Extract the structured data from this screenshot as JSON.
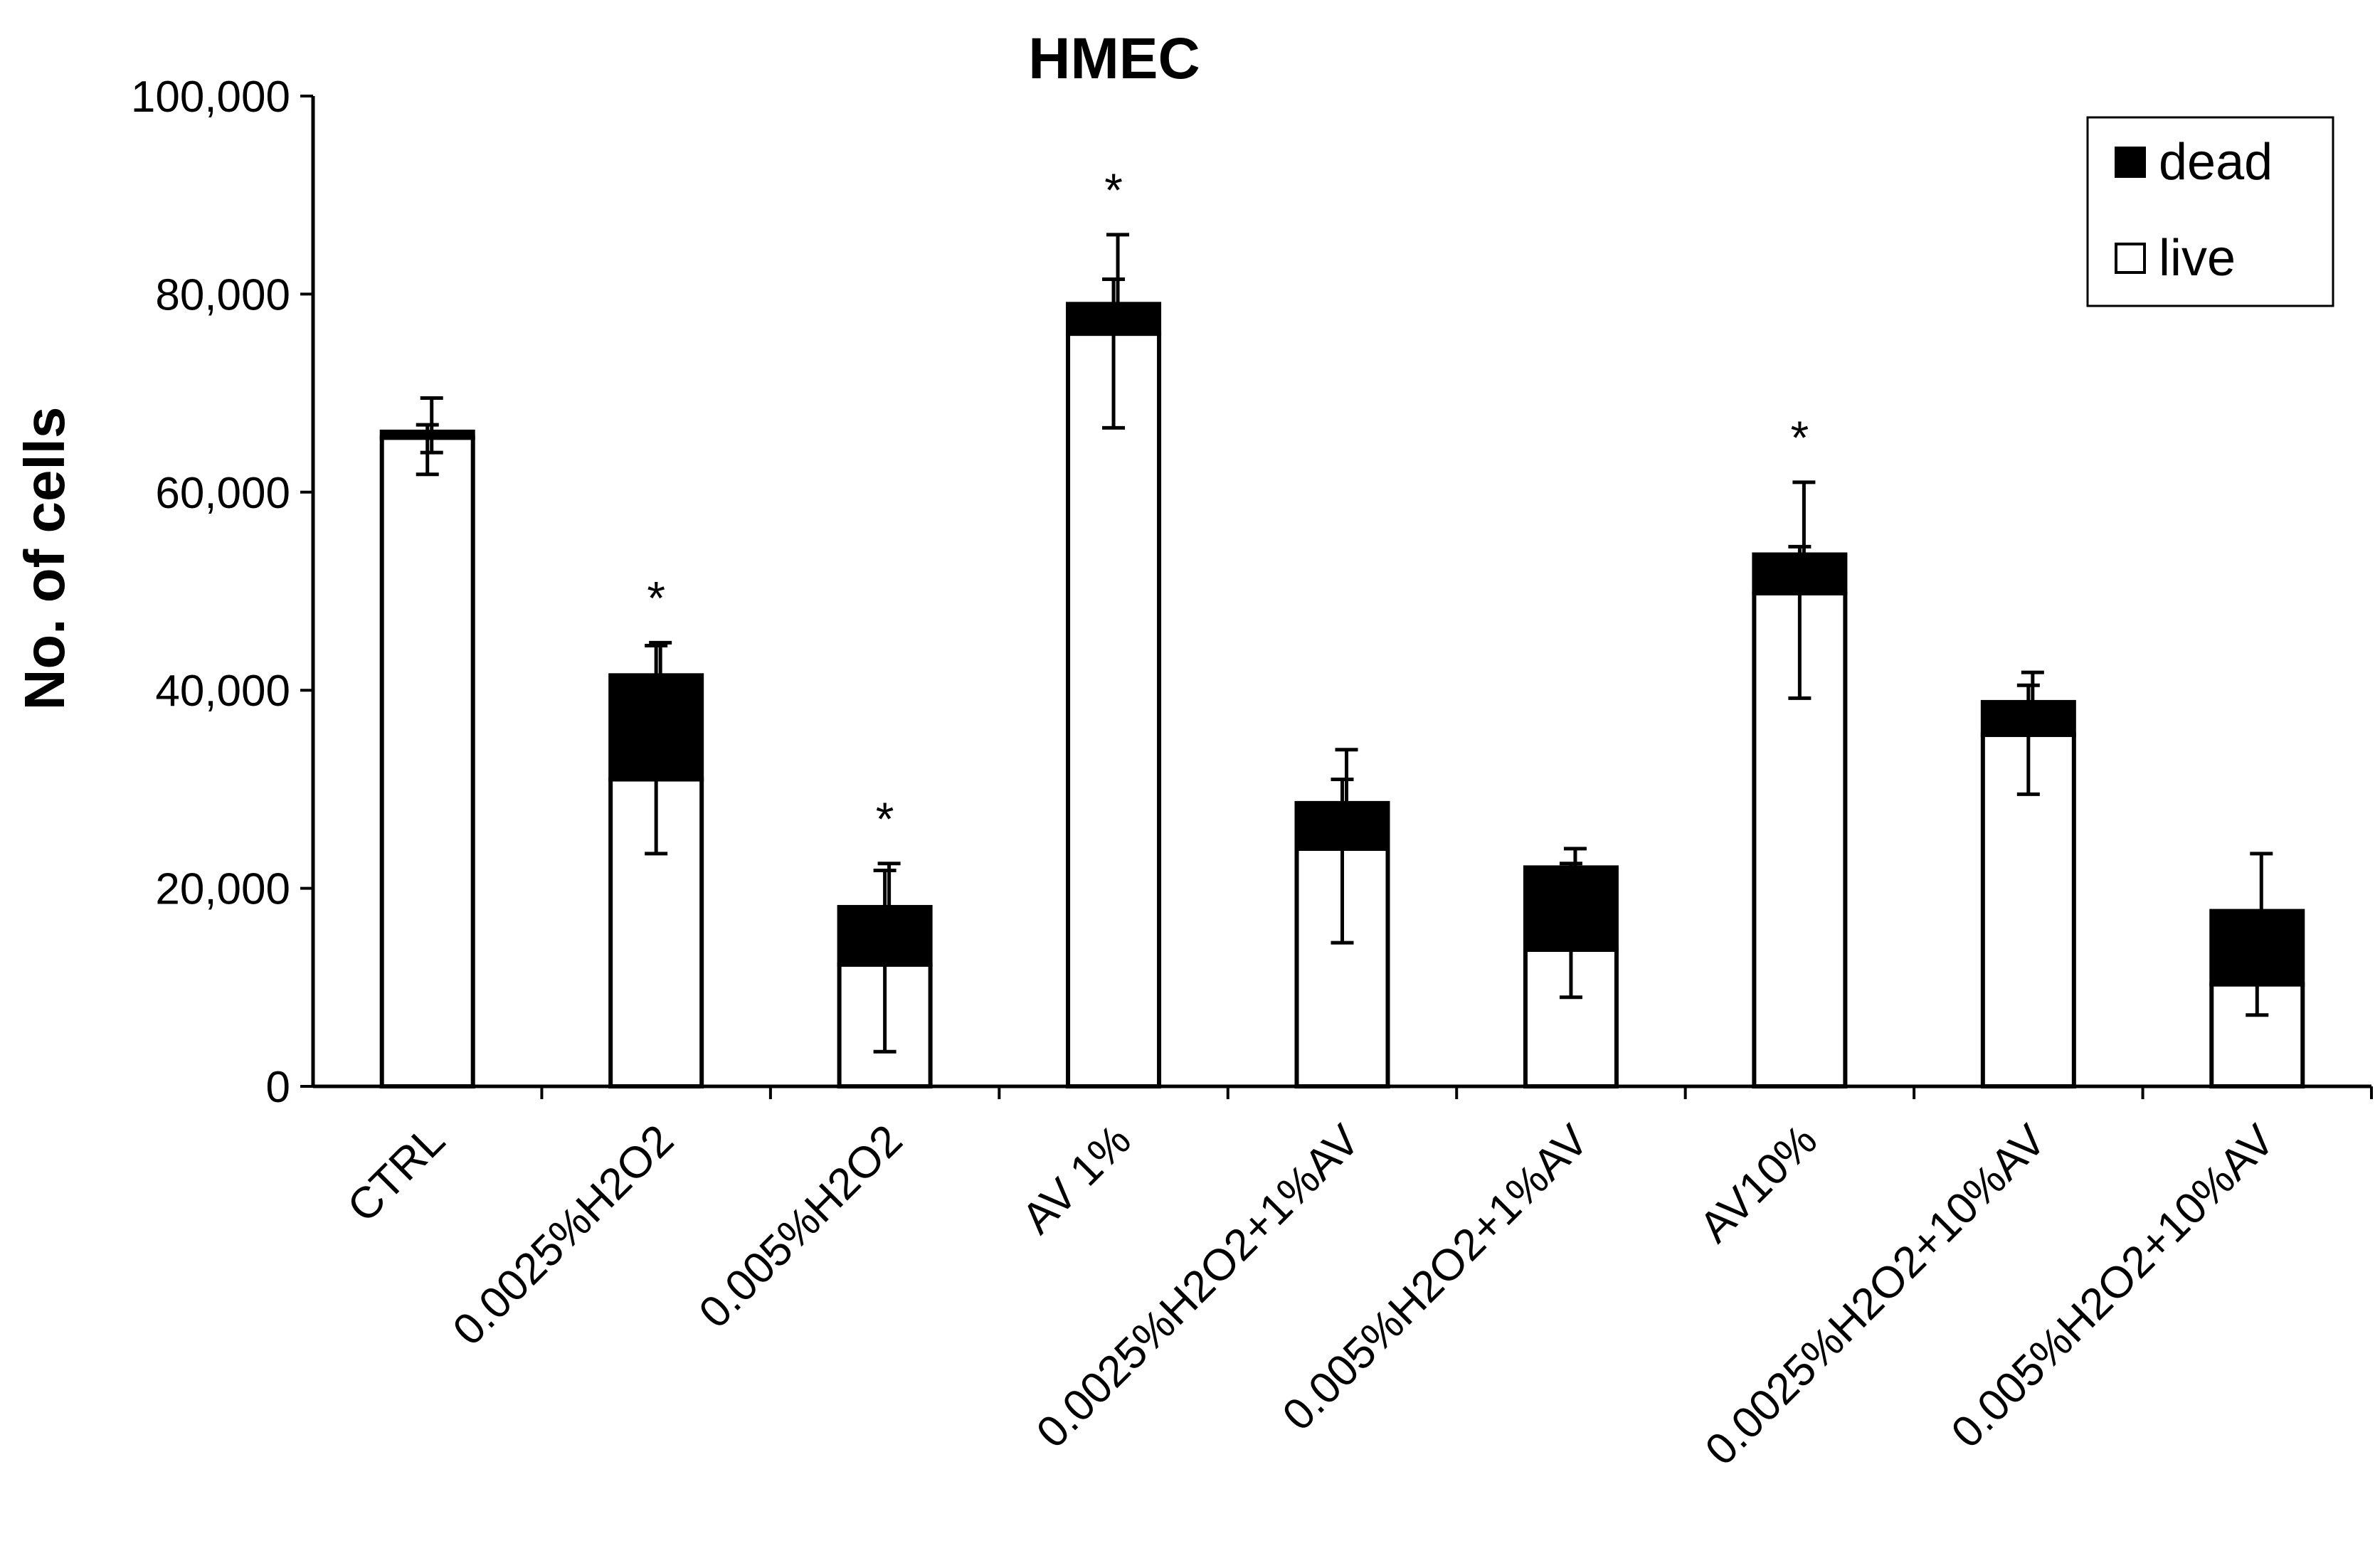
{
  "chart_data": {
    "type": "bar",
    "stacked": true,
    "title": "HMEC",
    "xlabel": "",
    "ylabel": "No. of cells",
    "ylim": [
      0,
      100000
    ],
    "yticks": [
      0,
      20000,
      40000,
      60000,
      80000,
      100000
    ],
    "ytick_labels": [
      "0",
      "20,000",
      "40,000",
      "60,000",
      "80,000",
      "100,000"
    ],
    "categories": [
      "CTRL",
      "0.0025%H2O2",
      "0.005%H2O2",
      "AV 1%",
      "0.0025%H2O2+1%AV",
      "0.005%H2O2+1%AV",
      "AV10%",
      "0.0025%H2O2+10%AV",
      "0.005%H2O2+10%AV"
    ],
    "series": [
      {
        "name": "live",
        "color": "#ffffff",
        "values": [
          65500,
          31000,
          12300,
          76000,
          24000,
          13800,
          49800,
          35500,
          10300
        ]
      },
      {
        "name": "dead",
        "color": "#000000",
        "values": [
          600,
          10500,
          5800,
          3000,
          4600,
          8300,
          3900,
          3300,
          7400
        ]
      }
    ],
    "error_bars": {
      "live": {
        "low": [
          61800,
          23500,
          3500,
          66500,
          14500,
          9000,
          39200,
          29500,
          7200
        ],
        "high": [
          66800,
          44500,
          21800,
          81500,
          31000,
          22500,
          54500,
          40500,
          13800
        ]
      },
      "total": {
        "low": [
          64000,
          40000,
          17000,
          78000,
          27000,
          20000,
          52000,
          37000,
          15000
        ],
        "high": [
          69500,
          44800,
          22500,
          86000,
          34000,
          24000,
          61000,
          41800,
          23500
        ]
      }
    },
    "significance_marker": "*",
    "significant": [
      false,
      true,
      true,
      true,
      false,
      false,
      true,
      false,
      false
    ],
    "legend": {
      "position": "top-right",
      "entries": [
        "dead",
        "live"
      ]
    },
    "grid": false
  }
}
